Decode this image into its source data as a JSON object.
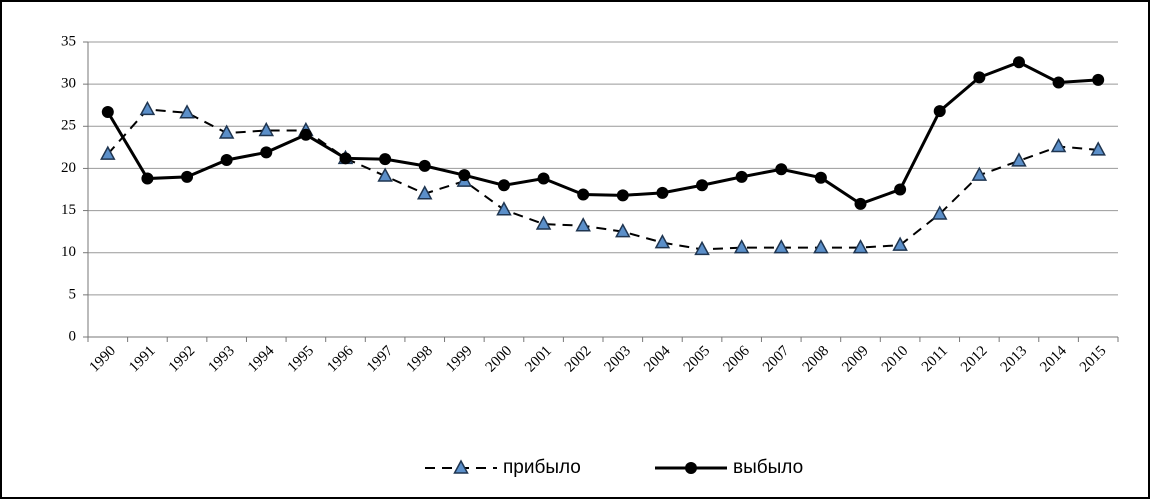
{
  "chart_data": {
    "type": "line",
    "categories": [
      "1990",
      "1991",
      "1992",
      "1993",
      "1994",
      "1995",
      "1996",
      "1997",
      "1998",
      "1999",
      "2000",
      "2001",
      "2002",
      "2003",
      "2004",
      "2005",
      "2006",
      "2007",
      "2008",
      "2009",
      "2010",
      "2011",
      "2012",
      "2013",
      "2014",
      "2015"
    ],
    "series": [
      {
        "name": "прибыло",
        "color": "#000000",
        "line_style": "dashed",
        "marker": "triangle",
        "marker_color": "#5b8fc9",
        "values": [
          21.7,
          27.0,
          26.6,
          24.2,
          24.5,
          24.5,
          21.2,
          19.1,
          17.0,
          18.5,
          15.1,
          13.4,
          13.2,
          12.5,
          11.2,
          10.4,
          10.6,
          10.6,
          10.6,
          10.6,
          10.9,
          14.6,
          19.2,
          20.9,
          22.6,
          22.2
        ]
      },
      {
        "name": "выбыло",
        "color": "#000000",
        "line_style": "solid",
        "marker": "circle",
        "marker_color": "#000000",
        "values": [
          26.7,
          18.8,
          19.0,
          21.0,
          21.9,
          24.0,
          21.2,
          21.1,
          20.3,
          19.2,
          18.0,
          18.8,
          16.9,
          16.8,
          17.1,
          18.0,
          19.0,
          19.9,
          18.9,
          15.8,
          17.5,
          26.8,
          30.8,
          32.6,
          30.2,
          30.5
        ]
      }
    ],
    "ylim": [
      0,
      35
    ],
    "yticks": [
      0,
      5,
      10,
      15,
      20,
      25,
      30,
      35
    ],
    "grid": true,
    "legend": "bottom"
  }
}
